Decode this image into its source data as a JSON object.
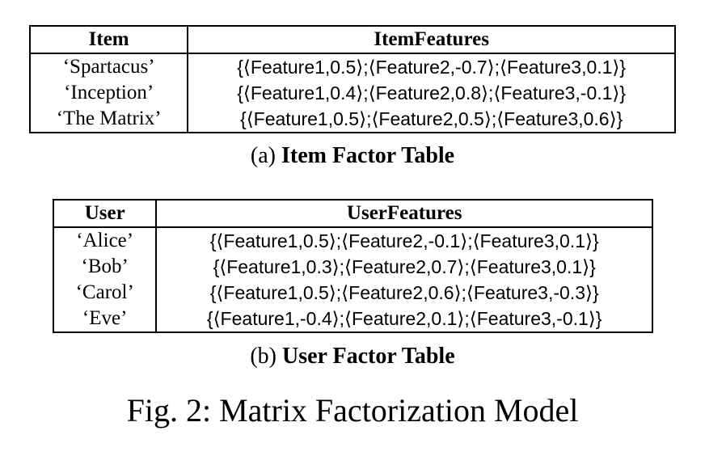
{
  "item_table": {
    "headers": [
      "Item",
      "ItemFeatures"
    ],
    "rows": [
      [
        "‘Spartacus’",
        "{⟨Feature1,0.5⟩;⟨Feature2,-0.7⟩;⟨Feature3,0.1⟩}"
      ],
      [
        "‘Inception’",
        "{⟨Feature1,0.4⟩;⟨Feature2,0.8⟩;⟨Feature3,-0.1⟩}"
      ],
      [
        "‘The Matrix’",
        "{⟨Feature1,0.5⟩;⟨Feature2,0.5⟩;⟨Feature3,0.6⟩}"
      ]
    ],
    "caption_label": "(a)",
    "caption_title": "Item Factor Table"
  },
  "user_table": {
    "headers": [
      "User",
      "UserFeatures"
    ],
    "rows": [
      [
        "‘Alice’",
        "{⟨Feature1,0.5⟩;⟨Feature2,-0.1⟩;⟨Feature3,0.1⟩}"
      ],
      [
        "‘Bob’",
        "{⟨Feature1,0.3⟩;⟨Feature2,0.7⟩;⟨Feature3,0.1⟩}"
      ],
      [
        "‘Carol’",
        "{⟨Feature1,0.5⟩;⟨Feature2,0.6⟩;⟨Feature3,-0.3⟩}"
      ],
      [
        "‘Eve’",
        "{⟨Feature1,-0.4⟩;⟨Feature2,0.1⟩;⟨Feature3,-0.1⟩}"
      ]
    ],
    "caption_label": "(b)",
    "caption_title": "User Factor Table"
  },
  "figure_caption": "Fig. 2: Matrix Factorization Model"
}
